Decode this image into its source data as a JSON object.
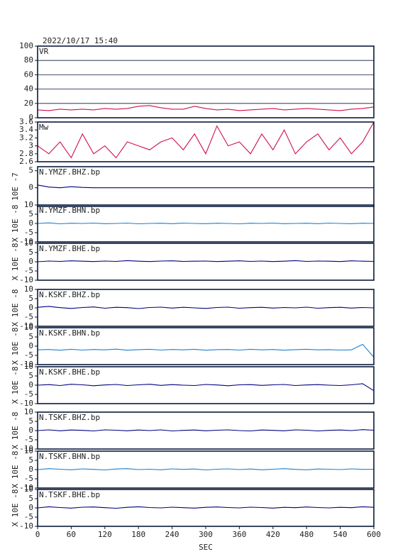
{
  "chart_data": [
    {
      "type": "line",
      "title": "2022/10/17 15:40",
      "label": "VR",
      "ylim": [
        0,
        100
      ],
      "yticks": [
        0,
        20,
        40,
        60,
        80,
        100
      ],
      "grid": true,
      "xlim": [
        0,
        600
      ],
      "x": [
        0,
        20,
        40,
        60,
        80,
        100,
        120,
        140,
        160,
        180,
        200,
        220,
        240,
        260,
        280,
        300,
        320,
        340,
        360,
        380,
        400,
        420,
        440,
        460,
        480,
        500,
        520,
        540,
        560,
        580,
        600
      ],
      "series": [
        {
          "color": "#d0104a",
          "values": [
            11,
            10,
            12,
            11,
            12,
            11,
            13,
            12,
            13,
            16,
            17,
            14,
            12,
            12,
            16,
            13,
            11,
            12,
            10,
            11,
            12,
            13,
            11,
            12,
            13,
            12,
            11,
            10,
            12,
            13,
            15
          ]
        }
      ]
    },
    {
      "type": "line",
      "label": "Mw",
      "ylim": [
        2.6,
        3.6
      ],
      "yticks": [
        2.6,
        2.8,
        3,
        3.2,
        3.4,
        3.6
      ],
      "xlim": [
        0,
        600
      ],
      "x": [
        0,
        20,
        40,
        60,
        80,
        100,
        120,
        140,
        160,
        180,
        200,
        220,
        240,
        260,
        280,
        300,
        320,
        340,
        360,
        380,
        400,
        420,
        440,
        460,
        480,
        500,
        520,
        540,
        560,
        580,
        600
      ],
      "series": [
        {
          "color": "#d0104a",
          "values": [
            3.0,
            2.8,
            3.1,
            2.7,
            3.3,
            2.8,
            3.0,
            2.7,
            3.1,
            3.0,
            2.9,
            3.1,
            3.2,
            2.9,
            3.3,
            2.8,
            3.5,
            3.0,
            3.1,
            2.8,
            3.3,
            2.9,
            3.4,
            2.8,
            3.1,
            3.3,
            2.9,
            3.2,
            2.8,
            3.1,
            3.6
          ]
        }
      ]
    },
    {
      "type": "line",
      "label": "N.YMZF.BHZ.bp",
      "ylabel": "10E -7",
      "ylim": [
        -5.5,
        6.2
      ],
      "yticks": [
        0,
        5
      ],
      "xlim": [
        0,
        600
      ],
      "x": [
        0,
        20,
        40,
        60,
        80,
        100,
        120,
        140,
        160,
        180,
        200,
        220,
        240,
        260,
        280,
        300,
        320,
        340,
        360,
        380,
        400,
        420,
        440,
        460,
        480,
        500,
        520,
        540,
        560,
        580,
        600
      ],
      "series": [
        {
          "color": "#000080",
          "values": [
            0.8,
            0.2,
            0,
            0.3,
            0.1,
            0,
            0,
            0,
            0,
            0,
            0,
            0,
            0,
            0,
            0,
            0,
            0,
            0,
            0,
            0,
            0,
            0,
            0,
            0,
            0,
            0,
            0,
            0,
            0,
            0,
            0
          ]
        }
      ]
    },
    {
      "type": "line",
      "label": "N.YMZF.BHN.bp",
      "ylabel": "X 10E -8",
      "ylim": [
        -10,
        10
      ],
      "yticks": [
        -10,
        -5,
        0,
        5,
        10
      ],
      "xlim": [
        0,
        600
      ],
      "x": [
        0,
        20,
        40,
        60,
        80,
        100,
        120,
        140,
        160,
        180,
        200,
        220,
        240,
        260,
        280,
        300,
        320,
        340,
        360,
        380,
        400,
        420,
        440,
        460,
        480,
        500,
        520,
        540,
        560,
        580,
        600
      ],
      "series": [
        {
          "color": "#1a7fd0",
          "values": [
            0,
            0.3,
            -0.2,
            0.1,
            0,
            0.2,
            -0.1,
            0,
            0.2,
            -0.2,
            0,
            0.1,
            -0.1,
            0.2,
            0,
            -0.1,
            0.1,
            0,
            -0.2,
            0.1,
            0,
            0.2,
            -0.1,
            0,
            0.1,
            -0.1,
            0.2,
            0,
            -0.1,
            0.1,
            0
          ]
        }
      ]
    },
    {
      "type": "line",
      "label": "N.YMZF.BHE.bp",
      "ylabel": "X 10E -8",
      "ylim": [
        -10,
        10
      ],
      "yticks": [
        -10,
        -5,
        0,
        5,
        10
      ],
      "xlim": [
        0,
        600
      ],
      "x": [
        0,
        20,
        40,
        60,
        80,
        100,
        120,
        140,
        160,
        180,
        200,
        220,
        240,
        260,
        280,
        300,
        320,
        340,
        360,
        380,
        400,
        420,
        440,
        460,
        480,
        500,
        520,
        540,
        560,
        580,
        600
      ],
      "series": [
        {
          "color": "#000080",
          "values": [
            0,
            0.4,
            0.2,
            0.5,
            0.3,
            0.1,
            0.4,
            0.2,
            0.6,
            0.3,
            0.1,
            0.4,
            0.5,
            0.2,
            0.3,
            0.4,
            0.1,
            0.3,
            0.5,
            0.2,
            0.4,
            0.1,
            0.3,
            0.6,
            0.2,
            0.4,
            0.3,
            0.1,
            0.5,
            0.3,
            0.2
          ]
        }
      ]
    },
    {
      "type": "line",
      "label": "N.KSKF.BHZ.bp",
      "ylabel": "X 10E -8",
      "ylim": [
        -10,
        10
      ],
      "yticks": [
        -10,
        -5,
        0,
        5,
        10
      ],
      "xlim": [
        0,
        600
      ],
      "x": [
        0,
        20,
        40,
        60,
        80,
        100,
        120,
        140,
        160,
        180,
        200,
        220,
        240,
        260,
        280,
        300,
        320,
        340,
        360,
        380,
        400,
        420,
        440,
        460,
        480,
        500,
        520,
        540,
        560,
        580,
        600
      ],
      "series": [
        {
          "color": "#000080",
          "values": [
            0.3,
            0.8,
            0.1,
            -0.3,
            0.2,
            0.5,
            -0.2,
            0.3,
            0.1,
            -0.4,
            0.2,
            0.4,
            -0.1,
            0.3,
            0,
            -0.3,
            0.2,
            0.4,
            -0.2,
            0.1,
            0.3,
            -0.1,
            0.2,
            0,
            0.4,
            -0.2,
            0.1,
            0.3,
            -0.1,
            0.2,
            0
          ]
        }
      ]
    },
    {
      "type": "line",
      "label": "N.KSKF.BHN.bp",
      "ylabel": "X 10E -8",
      "ylim": [
        -10,
        10
      ],
      "yticks": [
        -10,
        -5,
        0,
        5,
        10
      ],
      "xlim": [
        0,
        600
      ],
      "x": [
        0,
        20,
        40,
        60,
        80,
        100,
        120,
        140,
        160,
        180,
        200,
        220,
        240,
        260,
        280,
        300,
        320,
        340,
        360,
        380,
        400,
        420,
        440,
        460,
        480,
        500,
        520,
        540,
        560,
        580,
        600
      ],
      "series": [
        {
          "color": "#1a7fd0",
          "values": [
            -2,
            -1.8,
            -2.2,
            -1.7,
            -2.1,
            -1.8,
            -2,
            -1.6,
            -2.2,
            -1.9,
            -1.7,
            -2.1,
            -1.8,
            -2,
            -1.7,
            -2.2,
            -1.9,
            -1.8,
            -2.1,
            -1.7,
            -2,
            -1.8,
            -2.2,
            -1.9,
            -1.7,
            -2,
            -1.9,
            -2.1,
            -2,
            1,
            -6
          ]
        }
      ]
    },
    {
      "type": "line",
      "label": "N.KSKF.BHE.bp",
      "ylabel": "X 10E -8",
      "ylim": [
        -10,
        10
      ],
      "yticks": [
        -10,
        -5,
        0,
        5,
        10
      ],
      "xlim": [
        0,
        600
      ],
      "x": [
        0,
        20,
        40,
        60,
        80,
        100,
        120,
        140,
        160,
        180,
        200,
        220,
        240,
        260,
        280,
        300,
        320,
        340,
        360,
        380,
        400,
        420,
        440,
        460,
        480,
        500,
        520,
        540,
        560,
        580,
        600
      ],
      "series": [
        {
          "color": "#000080",
          "values": [
            0,
            0.3,
            -0.2,
            0.5,
            0.2,
            -0.3,
            0.1,
            0.4,
            -0.2,
            0.2,
            0.5,
            -0.1,
            0.3,
            0,
            -0.2,
            0.4,
            0.1,
            -0.3,
            0.2,
            0.3,
            -0.1,
            0.2,
            0.4,
            -0.2,
            0.1,
            0.3,
            0,
            -0.2,
            0.2,
            0.8,
            -3
          ]
        }
      ]
    },
    {
      "type": "line",
      "label": "N.TSKF.BHZ.bp",
      "ylabel": "X 10E -8",
      "ylim": [
        -10,
        10
      ],
      "yticks": [
        -10,
        -5,
        0,
        5,
        10
      ],
      "xlim": [
        0,
        600
      ],
      "x": [
        0,
        20,
        40,
        60,
        80,
        100,
        120,
        140,
        160,
        180,
        200,
        220,
        240,
        260,
        280,
        300,
        320,
        340,
        360,
        380,
        400,
        420,
        440,
        460,
        480,
        500,
        520,
        540,
        560,
        580,
        600
      ],
      "series": [
        {
          "color": "#000080",
          "values": [
            0,
            0.4,
            -0.1,
            0.3,
            0.1,
            -0.2,
            0.4,
            0.2,
            -0.1,
            0.3,
            0,
            0.4,
            -0.2,
            0.1,
            0.3,
            -0.1,
            0.2,
            0.4,
            0,
            -0.2,
            0.3,
            0.1,
            -0.1,
            0.4,
            0.2,
            -0.2,
            0.1,
            0.3,
            0,
            0.5,
            0.2
          ]
        }
      ]
    },
    {
      "type": "line",
      "label": "N.TSKF.BHN.bp",
      "ylabel": "X 10E -8",
      "ylim": [
        -10,
        10
      ],
      "yticks": [
        -10,
        -5,
        0,
        5,
        10
      ],
      "xlim": [
        0,
        600
      ],
      "x": [
        0,
        20,
        40,
        60,
        80,
        100,
        120,
        140,
        160,
        180,
        200,
        220,
        240,
        260,
        280,
        300,
        320,
        340,
        360,
        380,
        400,
        420,
        440,
        460,
        480,
        500,
        520,
        540,
        560,
        580,
        600
      ],
      "series": [
        {
          "color": "#1a7fd0",
          "values": [
            0,
            0.5,
            0.2,
            -0.1,
            0.4,
            0.1,
            -0.2,
            0.3,
            0.5,
            0,
            0.2,
            -0.1,
            0.4,
            0.1,
            0.3,
            -0.2,
            0.2,
            0.4,
            0,
            0.3,
            -0.1,
            0.2,
            0.5,
            0.1,
            -0.1,
            0.3,
            0.2,
            0,
            0.4,
            0.1,
            0.2
          ]
        }
      ]
    },
    {
      "type": "line",
      "label": "N.TSKF.BHE.bp",
      "ylabel": "X 10E -8",
      "ylim": [
        -10,
        10
      ],
      "yticks": [
        -10,
        -5,
        0,
        5,
        10
      ],
      "xlim": [
        0,
        600
      ],
      "x": [
        0,
        20,
        40,
        60,
        80,
        100,
        120,
        140,
        160,
        180,
        200,
        220,
        240,
        260,
        280,
        300,
        320,
        340,
        360,
        380,
        400,
        420,
        440,
        460,
        480,
        500,
        520,
        540,
        560,
        580,
        600
      ],
      "xticks": [
        0,
        60,
        120,
        180,
        240,
        300,
        360,
        420,
        480,
        540,
        600
      ],
      "xlabel": "SEC",
      "series": [
        {
          "color": "#000080",
          "values": [
            0,
            0.6,
            0.2,
            -0.1,
            0.4,
            0.5,
            0.1,
            -0.2,
            0.3,
            0.6,
            0.2,
            0,
            0.4,
            0.1,
            -0.1,
            0.3,
            0.5,
            0.2,
            0,
            0.4,
            0.2,
            -0.1,
            0.3,
            0.1,
            0.5,
            0.2,
            0,
            0.3,
            0.1,
            0.6,
            0.3
          ]
        }
      ]
    }
  ]
}
